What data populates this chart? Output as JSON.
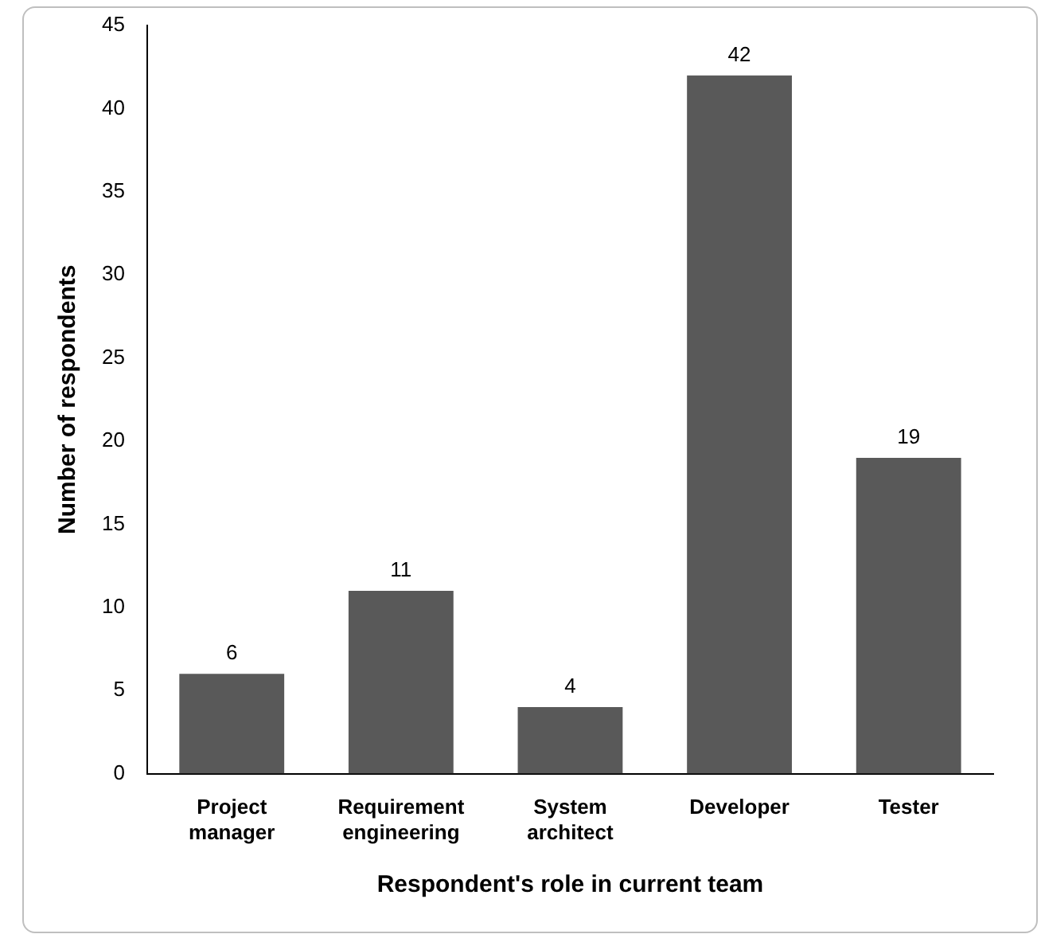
{
  "chart_data": {
    "type": "bar",
    "xlabel": "Respondent's role in current team",
    "ylabel": "Number of respondents",
    "categories": [
      "Project manager",
      "Requirement engineering",
      "System architect",
      "Developer",
      "Tester"
    ],
    "values": [
      6,
      11,
      4,
      42,
      19
    ],
    "color": "#595959",
    "ylim": [
      0,
      45
    ],
    "yticks": [
      0,
      5,
      10,
      15,
      20,
      25,
      30,
      35,
      40,
      45
    ],
    "grid": false,
    "legend": false,
    "data_labels": true
  }
}
